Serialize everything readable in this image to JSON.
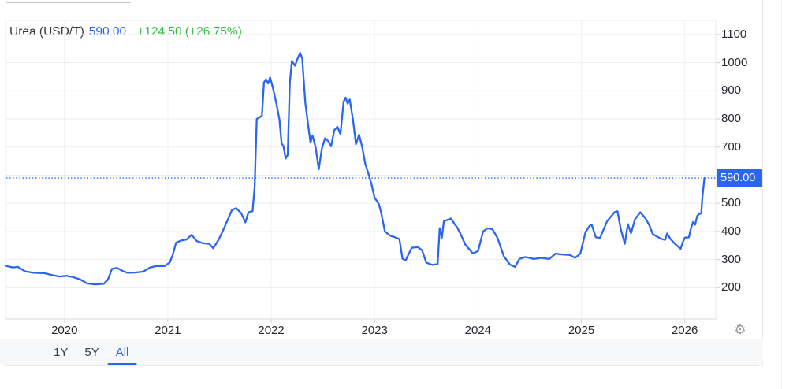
{
  "header": {
    "title": "Urea (USD/T)",
    "price": "590.00",
    "change": "+124.50 (+26.75%)"
  },
  "axis_badge": {
    "label": "590.00"
  },
  "range_bar": {
    "tabs": [
      {
        "label": "1Y",
        "active": false
      },
      {
        "label": "5Y",
        "active": false
      },
      {
        "label": "All",
        "active": true
      }
    ]
  },
  "icons": {
    "gear": "⚙"
  },
  "colors": {
    "accent": "#2a66f0",
    "line": "#2a66f0",
    "badge_bg": "#2a66f0",
    "change_green": "#33bb44",
    "grid": "#ededef",
    "grid_vertical": "#f0f1f2",
    "plot_border": "#e7e8ea",
    "axis_line": "#d8dadc",
    "tick": "#cfd1d4",
    "label_text": "#25282d"
  },
  "chart_data": {
    "type": "line",
    "title": "Urea (USD/T)",
    "unit": "USD/T",
    "current_price": 590.0,
    "change": 124.5,
    "change_pct": 26.75,
    "grid": true,
    "legend": "none",
    "x_range": [
      2019.43,
      2026.3
    ],
    "y_range": [
      89,
      1150
    ],
    "x_ticks": [
      2020,
      2021,
      2022,
      2023,
      2024,
      2025,
      2026
    ],
    "y_gridlines": [
      200,
      300,
      400,
      500,
      600,
      700,
      800,
      900,
      1000,
      1100
    ],
    "y_tick_labels": [
      1100,
      1000,
      900,
      800,
      700,
      500,
      400,
      300,
      200
    ],
    "dotted_line_value": 590,
    "series": [
      {
        "name": "Urea",
        "points": [
          [
            2019.43,
            278
          ],
          [
            2019.5,
            272
          ],
          [
            2019.55,
            274
          ],
          [
            2019.62,
            258
          ],
          [
            2019.7,
            253
          ],
          [
            2019.8,
            252
          ],
          [
            2019.88,
            245
          ],
          [
            2019.95,
            240
          ],
          [
            2020.02,
            242
          ],
          [
            2020.08,
            238
          ],
          [
            2020.15,
            230
          ],
          [
            2020.22,
            215
          ],
          [
            2020.3,
            212
          ],
          [
            2020.38,
            214
          ],
          [
            2020.42,
            228
          ],
          [
            2020.46,
            267
          ],
          [
            2020.51,
            270
          ],
          [
            2020.56,
            260
          ],
          [
            2020.61,
            253
          ],
          [
            2020.68,
            254
          ],
          [
            2020.76,
            257
          ],
          [
            2020.83,
            272
          ],
          [
            2020.89,
            277
          ],
          [
            2020.97,
            277
          ],
          [
            2021.02,
            290
          ],
          [
            2021.05,
            320
          ],
          [
            2021.08,
            360
          ],
          [
            2021.13,
            368
          ],
          [
            2021.18,
            371
          ],
          [
            2021.23,
            388
          ],
          [
            2021.28,
            366
          ],
          [
            2021.34,
            358
          ],
          [
            2021.4,
            356
          ],
          [
            2021.44,
            340
          ],
          [
            2021.49,
            370
          ],
          [
            2021.53,
            400
          ],
          [
            2021.58,
            442
          ],
          [
            2021.62,
            476
          ],
          [
            2021.66,
            483
          ],
          [
            2021.71,
            465
          ],
          [
            2021.75,
            432
          ],
          [
            2021.78,
            468
          ],
          [
            2021.82,
            472
          ],
          [
            2021.84,
            560
          ],
          [
            2021.86,
            800
          ],
          [
            2021.89,
            806
          ],
          [
            2021.91,
            812
          ],
          [
            2021.93,
            930
          ],
          [
            2021.95,
            941
          ],
          [
            2021.97,
            926
          ],
          [
            2021.99,
            947
          ],
          [
            2022.02,
            905
          ],
          [
            2022.05,
            855
          ],
          [
            2022.08,
            798
          ],
          [
            2022.1,
            714
          ],
          [
            2022.12,
            701
          ],
          [
            2022.14,
            659
          ],
          [
            2022.16,
            672
          ],
          [
            2022.18,
            928
          ],
          [
            2022.2,
            1006
          ],
          [
            2022.23,
            989
          ],
          [
            2022.26,
            1019
          ],
          [
            2022.28,
            1035
          ],
          [
            2022.3,
            1015
          ],
          [
            2022.33,
            858
          ],
          [
            2022.36,
            770
          ],
          [
            2022.38,
            716
          ],
          [
            2022.4,
            741
          ],
          [
            2022.43,
            699
          ],
          [
            2022.46,
            621
          ],
          [
            2022.49,
            694
          ],
          [
            2022.52,
            731
          ],
          [
            2022.55,
            722
          ],
          [
            2022.58,
            703
          ],
          [
            2022.61,
            760
          ],
          [
            2022.64,
            772
          ],
          [
            2022.67,
            746
          ],
          [
            2022.7,
            861
          ],
          [
            2022.72,
            876
          ],
          [
            2022.74,
            854
          ],
          [
            2022.76,
            869
          ],
          [
            2022.79,
            799
          ],
          [
            2022.82,
            710
          ],
          [
            2022.85,
            744
          ],
          [
            2022.88,
            700
          ],
          [
            2022.91,
            640
          ],
          [
            2022.94,
            607
          ],
          [
            2022.97,
            568
          ],
          [
            2023.0,
            520
          ],
          [
            2023.04,
            498
          ],
          [
            2023.06,
            472
          ],
          [
            2023.1,
            400
          ],
          [
            2023.15,
            385
          ],
          [
            2023.2,
            379
          ],
          [
            2023.24,
            373
          ],
          [
            2023.27,
            303
          ],
          [
            2023.3,
            297
          ],
          [
            2023.33,
            320
          ],
          [
            2023.36,
            342
          ],
          [
            2023.42,
            344
          ],
          [
            2023.46,
            333
          ],
          [
            2023.5,
            289
          ],
          [
            2023.56,
            281
          ],
          [
            2023.61,
            284
          ],
          [
            2023.63,
            412
          ],
          [
            2023.65,
            377
          ],
          [
            2023.67,
            437
          ],
          [
            2023.7,
            440
          ],
          [
            2023.74,
            446
          ],
          [
            2023.77,
            428
          ],
          [
            2023.8,
            414
          ],
          [
            2023.83,
            392
          ],
          [
            2023.88,
            352
          ],
          [
            2023.92,
            335
          ],
          [
            2023.95,
            322
          ],
          [
            2024.0,
            330
          ],
          [
            2024.05,
            400
          ],
          [
            2024.09,
            411
          ],
          [
            2024.14,
            408
          ],
          [
            2024.19,
            376
          ],
          [
            2024.25,
            312
          ],
          [
            2024.31,
            282
          ],
          [
            2024.36,
            274
          ],
          [
            2024.4,
            302
          ],
          [
            2024.46,
            309
          ],
          [
            2024.54,
            302
          ],
          [
            2024.61,
            306
          ],
          [
            2024.69,
            302
          ],
          [
            2024.75,
            321
          ],
          [
            2024.82,
            318
          ],
          [
            2024.89,
            316
          ],
          [
            2024.94,
            306
          ],
          [
            2024.99,
            321
          ],
          [
            2025.04,
            398
          ],
          [
            2025.08,
            420
          ],
          [
            2025.1,
            424
          ],
          [
            2025.14,
            379
          ],
          [
            2025.18,
            377
          ],
          [
            2025.25,
            437
          ],
          [
            2025.32,
            468
          ],
          [
            2025.35,
            472
          ],
          [
            2025.38,
            411
          ],
          [
            2025.42,
            356
          ],
          [
            2025.45,
            426
          ],
          [
            2025.48,
            394
          ],
          [
            2025.52,
            444
          ],
          [
            2025.57,
            468
          ],
          [
            2025.62,
            447
          ],
          [
            2025.66,
            420
          ],
          [
            2025.69,
            391
          ],
          [
            2025.73,
            382
          ],
          [
            2025.77,
            374
          ],
          [
            2025.81,
            370
          ],
          [
            2025.83,
            393
          ],
          [
            2025.86,
            374
          ],
          [
            2025.9,
            358
          ],
          [
            2025.94,
            345
          ],
          [
            2025.96,
            338
          ],
          [
            2025.98,
            360
          ],
          [
            2026.0,
            378
          ],
          [
            2026.04,
            379
          ],
          [
            2026.06,
            410
          ],
          [
            2026.08,
            433
          ],
          [
            2026.1,
            424
          ],
          [
            2026.12,
            455
          ],
          [
            2026.14,
            462
          ],
          [
            2026.16,
            464
          ],
          [
            2026.17,
            520
          ],
          [
            2026.19,
            590
          ]
        ]
      }
    ]
  }
}
